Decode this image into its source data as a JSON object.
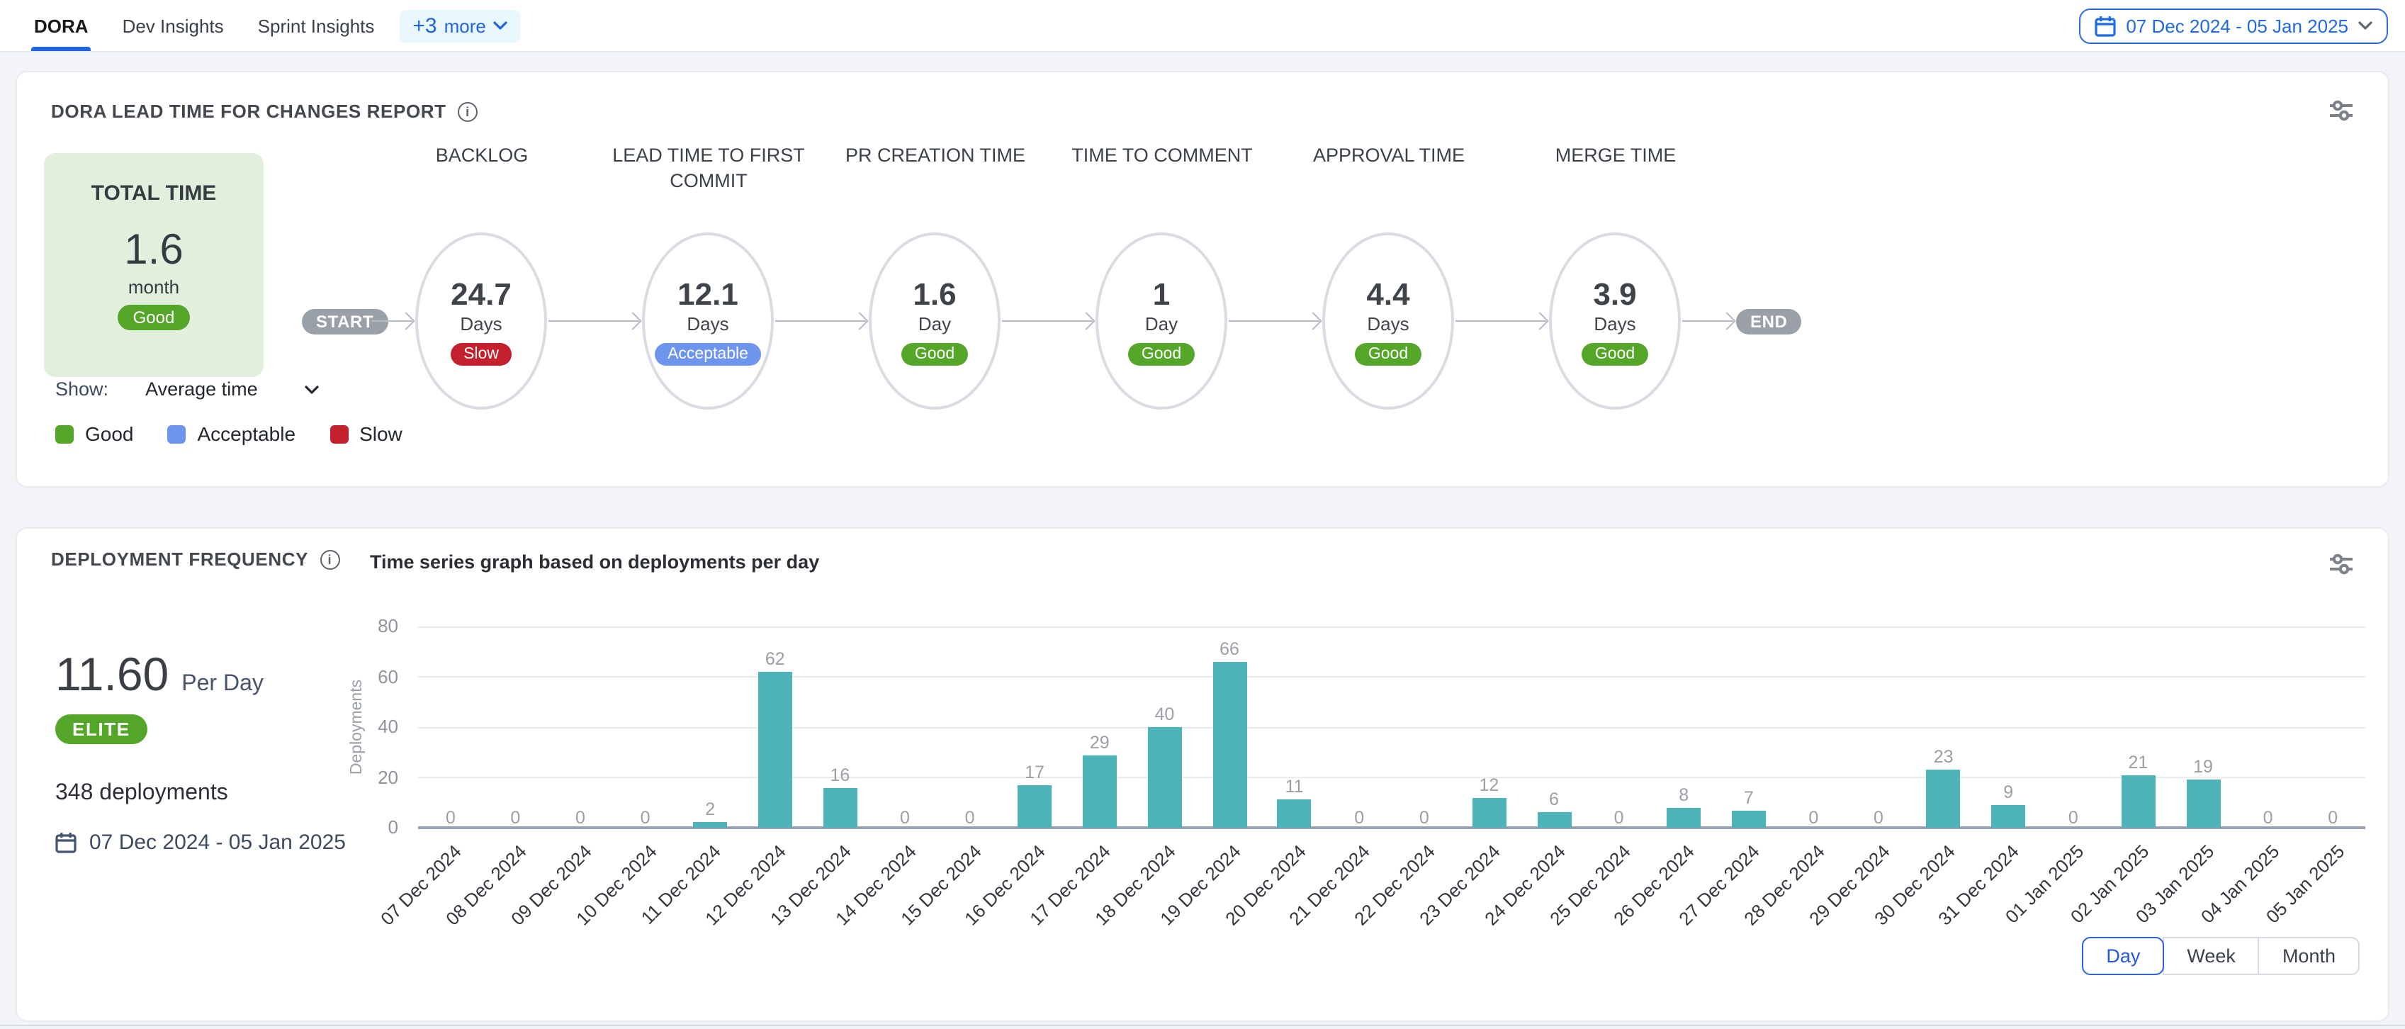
{
  "header": {
    "tabs": [
      {
        "label": "DORA",
        "active": true
      },
      {
        "label": "Dev Insights",
        "active": false
      },
      {
        "label": "Sprint Insights",
        "active": false
      }
    ],
    "more_count": "+3",
    "more_word": "more",
    "date_range": "07 Dec 2024 - 05 Jan 2025"
  },
  "colors": {
    "accent_blue": "#2064e4",
    "good_green": "#54a629",
    "acceptable_blue": "#6d95ee",
    "slow_red": "#c4202e",
    "bar_teal": "#4db4ba",
    "card_green_bg": "#e2efdc"
  },
  "lead_time_panel": {
    "title": "DORA LEAD TIME FOR CHANGES REPORT",
    "total": {
      "label": "TOTAL TIME",
      "value": "1.6",
      "unit": "month",
      "badge": "Good",
      "badge_color": "#54a629"
    },
    "flow": {
      "start": "START",
      "end": "END",
      "stages": [
        {
          "name": "BACKLOG",
          "value": "24.7",
          "unit": "Days",
          "badge": "Slow",
          "badge_color": "#c4202e"
        },
        {
          "name": "LEAD TIME TO FIRST COMMIT",
          "value": "12.1",
          "unit": "Days",
          "badge": "Acceptable",
          "badge_color": "#6d95ee"
        },
        {
          "name": "PR CREATION TIME",
          "value": "1.6",
          "unit": "Day",
          "badge": "Good",
          "badge_color": "#54a629"
        },
        {
          "name": "TIME TO COMMENT",
          "value": "1",
          "unit": "Day",
          "badge": "Good",
          "badge_color": "#54a629"
        },
        {
          "name": "APPROVAL TIME",
          "value": "4.4",
          "unit": "Days",
          "badge": "Good",
          "badge_color": "#54a629"
        },
        {
          "name": "MERGE TIME",
          "value": "3.9",
          "unit": "Days",
          "badge": "Good",
          "badge_color": "#54a629"
        }
      ]
    },
    "show_label": "Show:",
    "show_value": "Average time",
    "legend": [
      {
        "label": "Good",
        "color": "#54a629"
      },
      {
        "label": "Acceptable",
        "color": "#6d95ee"
      },
      {
        "label": "Slow",
        "color": "#c4202e"
      }
    ]
  },
  "deployment_panel": {
    "title": "DEPLOYMENT FREQUENCY",
    "subtitle": "Time series graph based on deployments per day",
    "rate_value": "11.60",
    "rate_unit": "Per Day",
    "tier_badge": "ELITE",
    "total_label": "348 deployments",
    "date_range": "07 Dec 2024 - 05 Jan 2025",
    "granularity": [
      {
        "label": "Day",
        "active": true
      },
      {
        "label": "Week",
        "active": false
      },
      {
        "label": "Month",
        "active": false
      }
    ]
  },
  "chart_data": {
    "type": "bar",
    "title": "Time series graph based on deployments per day",
    "xlabel": "",
    "ylabel": "Deployments",
    "ylim": [
      0,
      80
    ],
    "yticks": [
      0,
      20,
      40,
      60,
      80
    ],
    "grid": true,
    "bar_color": "#4db4ba",
    "categories": [
      "07 Dec 2024",
      "08 Dec 2024",
      "09 Dec 2024",
      "10 Dec 2024",
      "11 Dec 2024",
      "12 Dec 2024",
      "13 Dec 2024",
      "14 Dec 2024",
      "15 Dec 2024",
      "16 Dec 2024",
      "17 Dec 2024",
      "18 Dec 2024",
      "19 Dec 2024",
      "20 Dec 2024",
      "21 Dec 2024",
      "22 Dec 2024",
      "23 Dec 2024",
      "24 Dec 2024",
      "25 Dec 2024",
      "26 Dec 2024",
      "27 Dec 2024",
      "28 Dec 2024",
      "29 Dec 2024",
      "30 Dec 2024",
      "31 Dec 2024",
      "01 Jan 2025",
      "02 Jan 2025",
      "03 Jan 2025",
      "04 Jan 2025",
      "05 Jan 2025"
    ],
    "values": [
      0,
      0,
      0,
      0,
      2,
      62,
      16,
      0,
      0,
      17,
      29,
      40,
      66,
      11,
      0,
      0,
      12,
      6,
      0,
      8,
      7,
      0,
      0,
      23,
      9,
      0,
      21,
      19,
      0,
      0
    ]
  }
}
